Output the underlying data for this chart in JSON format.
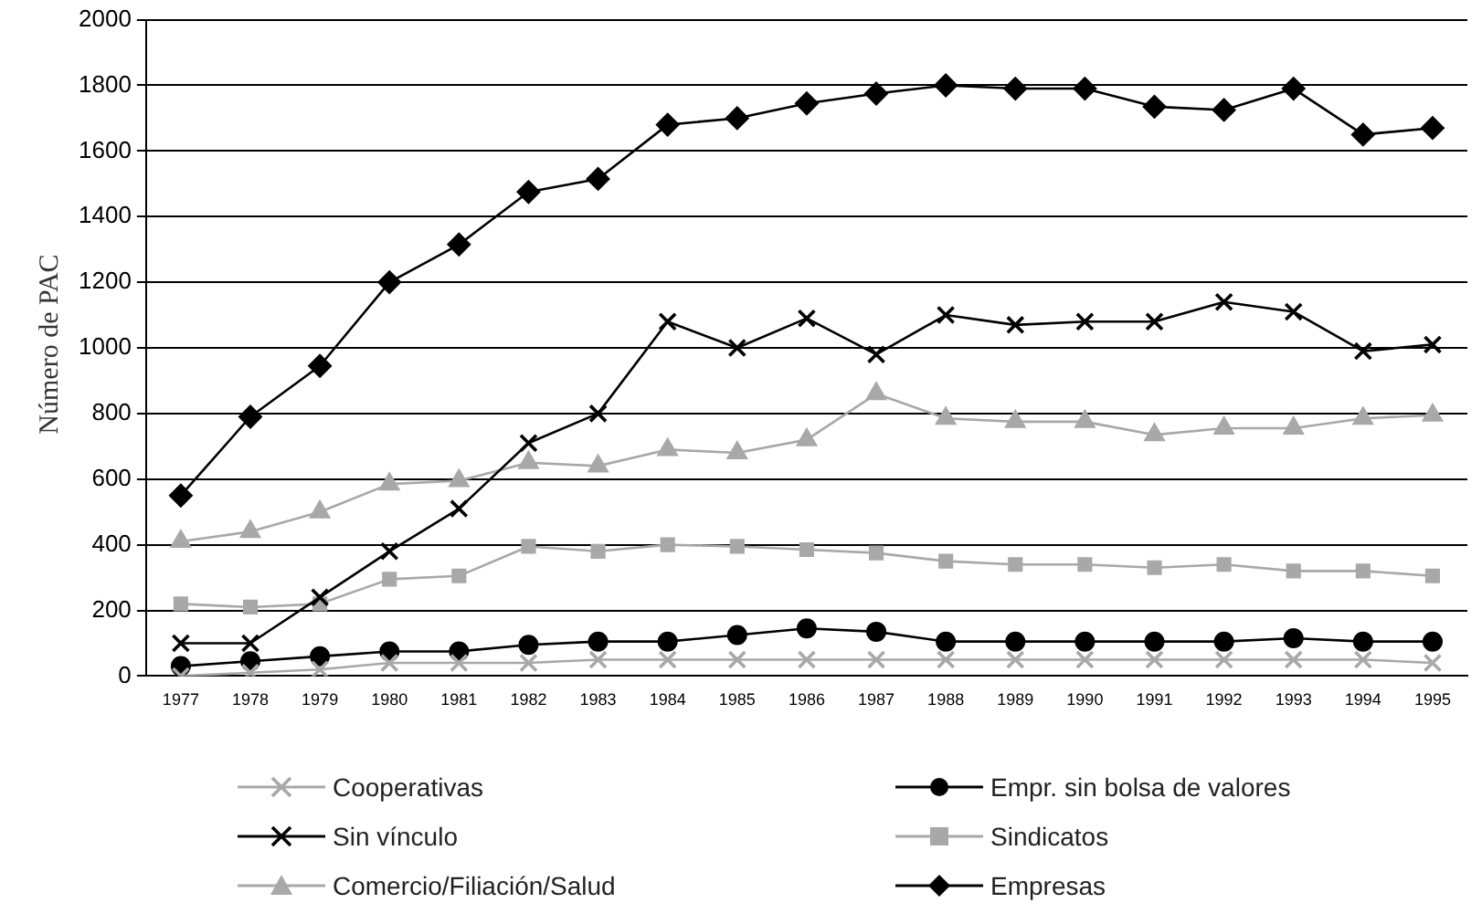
{
  "chart_data": {
    "type": "line",
    "ylabel": "Número de PAC",
    "categories": [
      "1977",
      "1978",
      "1979",
      "1980",
      "1981",
      "1982",
      "1983",
      "1984",
      "1985",
      "1986",
      "1987",
      "1988",
      "1989",
      "1990",
      "1991",
      "1992",
      "1993",
      "1994",
      "1995"
    ],
    "ylim": [
      0,
      2000
    ],
    "yticks": [
      0,
      200,
      400,
      600,
      800,
      1000,
      1200,
      1400,
      1600,
      1800,
      2000
    ],
    "grid": "y",
    "legend": "bottom",
    "series": [
      {
        "name": "Cooperativas",
        "color": "#a8a8a8",
        "marker": "cross",
        "values": [
          0,
          10,
          20,
          40,
          40,
          40,
          50,
          50,
          50,
          50,
          50,
          50,
          50,
          50,
          50,
          50,
          50,
          50,
          40
        ]
      },
      {
        "name": "Sin vínculo",
        "color": "#000000",
        "marker": "cross",
        "values": [
          100,
          100,
          240,
          380,
          510,
          710,
          800,
          1080,
          1000,
          1090,
          980,
          1100,
          1070,
          1080,
          1080,
          1140,
          1110,
          990,
          1010
        ]
      },
      {
        "name": "Comercio/Filiación/Salud",
        "color": "#a8a8a8",
        "marker": "triangle",
        "values": [
          410,
          440,
          500,
          585,
          595,
          650,
          640,
          690,
          680,
          720,
          860,
          785,
          775,
          775,
          735,
          755,
          755,
          785,
          795
        ]
      },
      {
        "name": "Empr. sin bolsa de valores",
        "color": "#000000",
        "marker": "circle",
        "values": [
          30,
          45,
          60,
          75,
          75,
          95,
          105,
          105,
          125,
          145,
          135,
          105,
          105,
          105,
          105,
          105,
          115,
          105,
          105
        ]
      },
      {
        "name": "Sindicatos",
        "color": "#a8a8a8",
        "marker": "square",
        "values": [
          220,
          210,
          220,
          295,
          305,
          395,
          380,
          400,
          395,
          385,
          375,
          350,
          340,
          340,
          330,
          340,
          320,
          320,
          305
        ]
      },
      {
        "name": "Empresas",
        "color": "#000000",
        "marker": "diamond",
        "values": [
          550,
          790,
          945,
          1200,
          1315,
          1475,
          1515,
          1680,
          1700,
          1745,
          1775,
          1800,
          1790,
          1790,
          1735,
          1725,
          1790,
          1650,
          1670
        ]
      }
    ]
  }
}
